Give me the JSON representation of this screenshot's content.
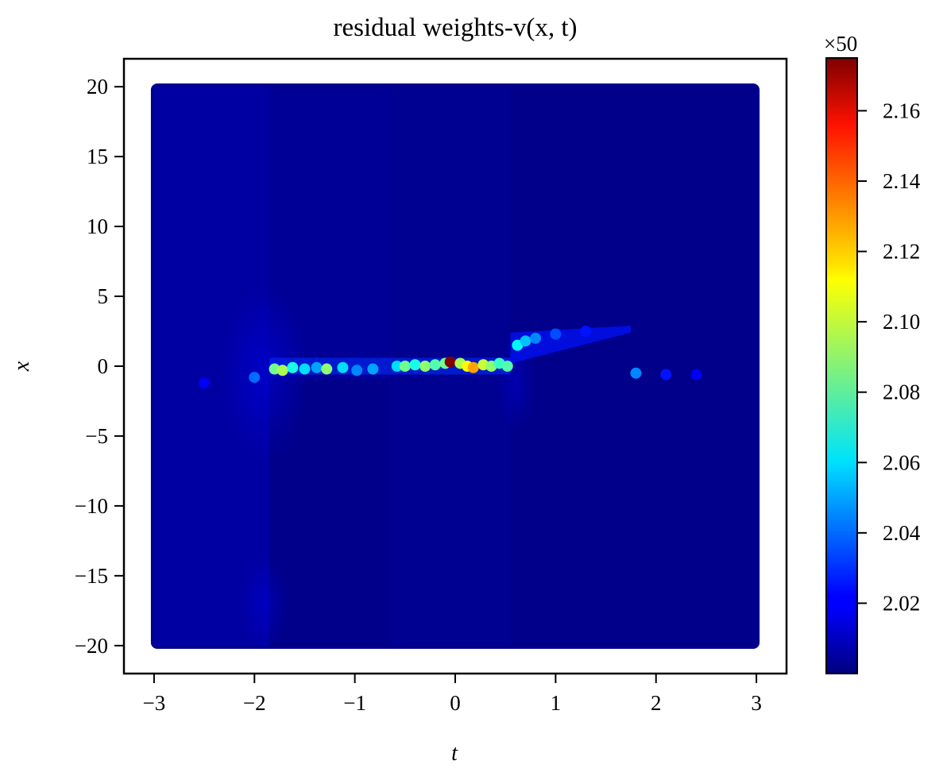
{
  "chart_data": {
    "type": "scatter",
    "title": "residual weights-v(x, t)",
    "xlabel": "t",
    "ylabel": "x",
    "xlim": [
      -3.3,
      3.3
    ],
    "ylim": [
      -22,
      22
    ],
    "xticks": [
      -3,
      -2,
      -1,
      0,
      1,
      2,
      3
    ],
    "yticks": [
      20,
      15,
      10,
      5,
      0,
      -5,
      -10,
      -15,
      -20
    ],
    "xtick_labels": [
      "−3",
      "−2",
      "−1",
      "0",
      "1",
      "2",
      "3"
    ],
    "ytick_labels": [
      "20",
      "15",
      "10",
      "5",
      "0",
      "−5",
      "−10",
      "−15",
      "−20"
    ],
    "grid": false,
    "colormap": "jet",
    "colorbar": {
      "multiplier_label": "×50",
      "range": [
        2.0,
        2.175
      ],
      "ticks": [
        2.02,
        2.04,
        2.06,
        2.08,
        2.1,
        2.12,
        2.14,
        2.16
      ],
      "tick_labels": [
        "2.02",
        "2.04",
        "2.06",
        "2.08",
        "2.10",
        "2.12",
        "2.14",
        "2.16"
      ]
    },
    "domain": {
      "t": [
        -3,
        3
      ],
      "x": [
        -20,
        20
      ]
    },
    "background_regions": [
      {
        "t": [
          -3.0,
          -1.85
        ],
        "x": [
          -20,
          20
        ],
        "value": 2.006
      },
      {
        "t": [
          -1.85,
          -0.65
        ],
        "x": [
          -1.0,
          20
        ],
        "value": 2.004
      },
      {
        "t": [
          -1.85,
          -0.65
        ],
        "x": [
          -20,
          -1.0
        ],
        "value": 2.002
      },
      {
        "t": [
          -0.65,
          0.55
        ],
        "x": [
          -20,
          20
        ],
        "value": 2.003
      },
      {
        "t": [
          0.55,
          1.75
        ],
        "x": [
          -20,
          20
        ],
        "value": 2.002
      },
      {
        "t": [
          1.75,
          3.0
        ],
        "x": [
          -20,
          20
        ],
        "value": 2.002
      }
    ],
    "highlight_points": [
      {
        "t": -1.8,
        "x": -0.2,
        "value": 2.085
      },
      {
        "t": -1.72,
        "x": -0.3,
        "value": 2.095
      },
      {
        "t": -1.62,
        "x": -0.1,
        "value": 2.07
      },
      {
        "t": -1.5,
        "x": -0.2,
        "value": 2.06
      },
      {
        "t": -1.38,
        "x": -0.1,
        "value": 2.05
      },
      {
        "t": -1.28,
        "x": -0.2,
        "value": 2.09
      },
      {
        "t": -1.12,
        "x": -0.1,
        "value": 2.06
      },
      {
        "t": -0.98,
        "x": -0.3,
        "value": 2.045
      },
      {
        "t": -0.82,
        "x": -0.2,
        "value": 2.05
      },
      {
        "t": -0.58,
        "x": 0.0,
        "value": 2.06
      },
      {
        "t": -0.5,
        "x": 0.0,
        "value": 2.085
      },
      {
        "t": -0.4,
        "x": 0.1,
        "value": 2.07
      },
      {
        "t": -0.3,
        "x": 0.0,
        "value": 2.09
      },
      {
        "t": -0.2,
        "x": 0.1,
        "value": 2.08
      },
      {
        "t": -0.1,
        "x": 0.2,
        "value": 2.085
      },
      {
        "t": -0.05,
        "x": 0.3,
        "value": 2.175
      },
      {
        "t": 0.05,
        "x": 0.2,
        "value": 2.095
      },
      {
        "t": 0.12,
        "x": 0.0,
        "value": 2.11
      },
      {
        "t": 0.18,
        "x": -0.1,
        "value": 2.125
      },
      {
        "t": 0.28,
        "x": 0.1,
        "value": 2.1
      },
      {
        "t": 0.36,
        "x": 0.0,
        "value": 2.09
      },
      {
        "t": 0.44,
        "x": 0.2,
        "value": 2.075
      },
      {
        "t": 0.52,
        "x": 0.0,
        "value": 2.08
      },
      {
        "t": 0.62,
        "x": 1.5,
        "value": 2.065
      },
      {
        "t": 0.7,
        "x": 1.8,
        "value": 2.055
      },
      {
        "t": 0.8,
        "x": 2.0,
        "value": 2.045
      },
      {
        "t": 1.0,
        "x": 2.3,
        "value": 2.035
      },
      {
        "t": 1.3,
        "x": 2.5,
        "value": 2.025
      },
      {
        "t": 1.8,
        "x": -0.5,
        "value": 2.045
      },
      {
        "t": 2.1,
        "x": -0.6,
        "value": 2.025
      },
      {
        "t": 2.4,
        "x": -0.6,
        "value": 2.02
      },
      {
        "t": -2.0,
        "x": -0.8,
        "value": 2.04
      },
      {
        "t": -2.5,
        "x": -1.2,
        "value": 2.02
      }
    ]
  }
}
